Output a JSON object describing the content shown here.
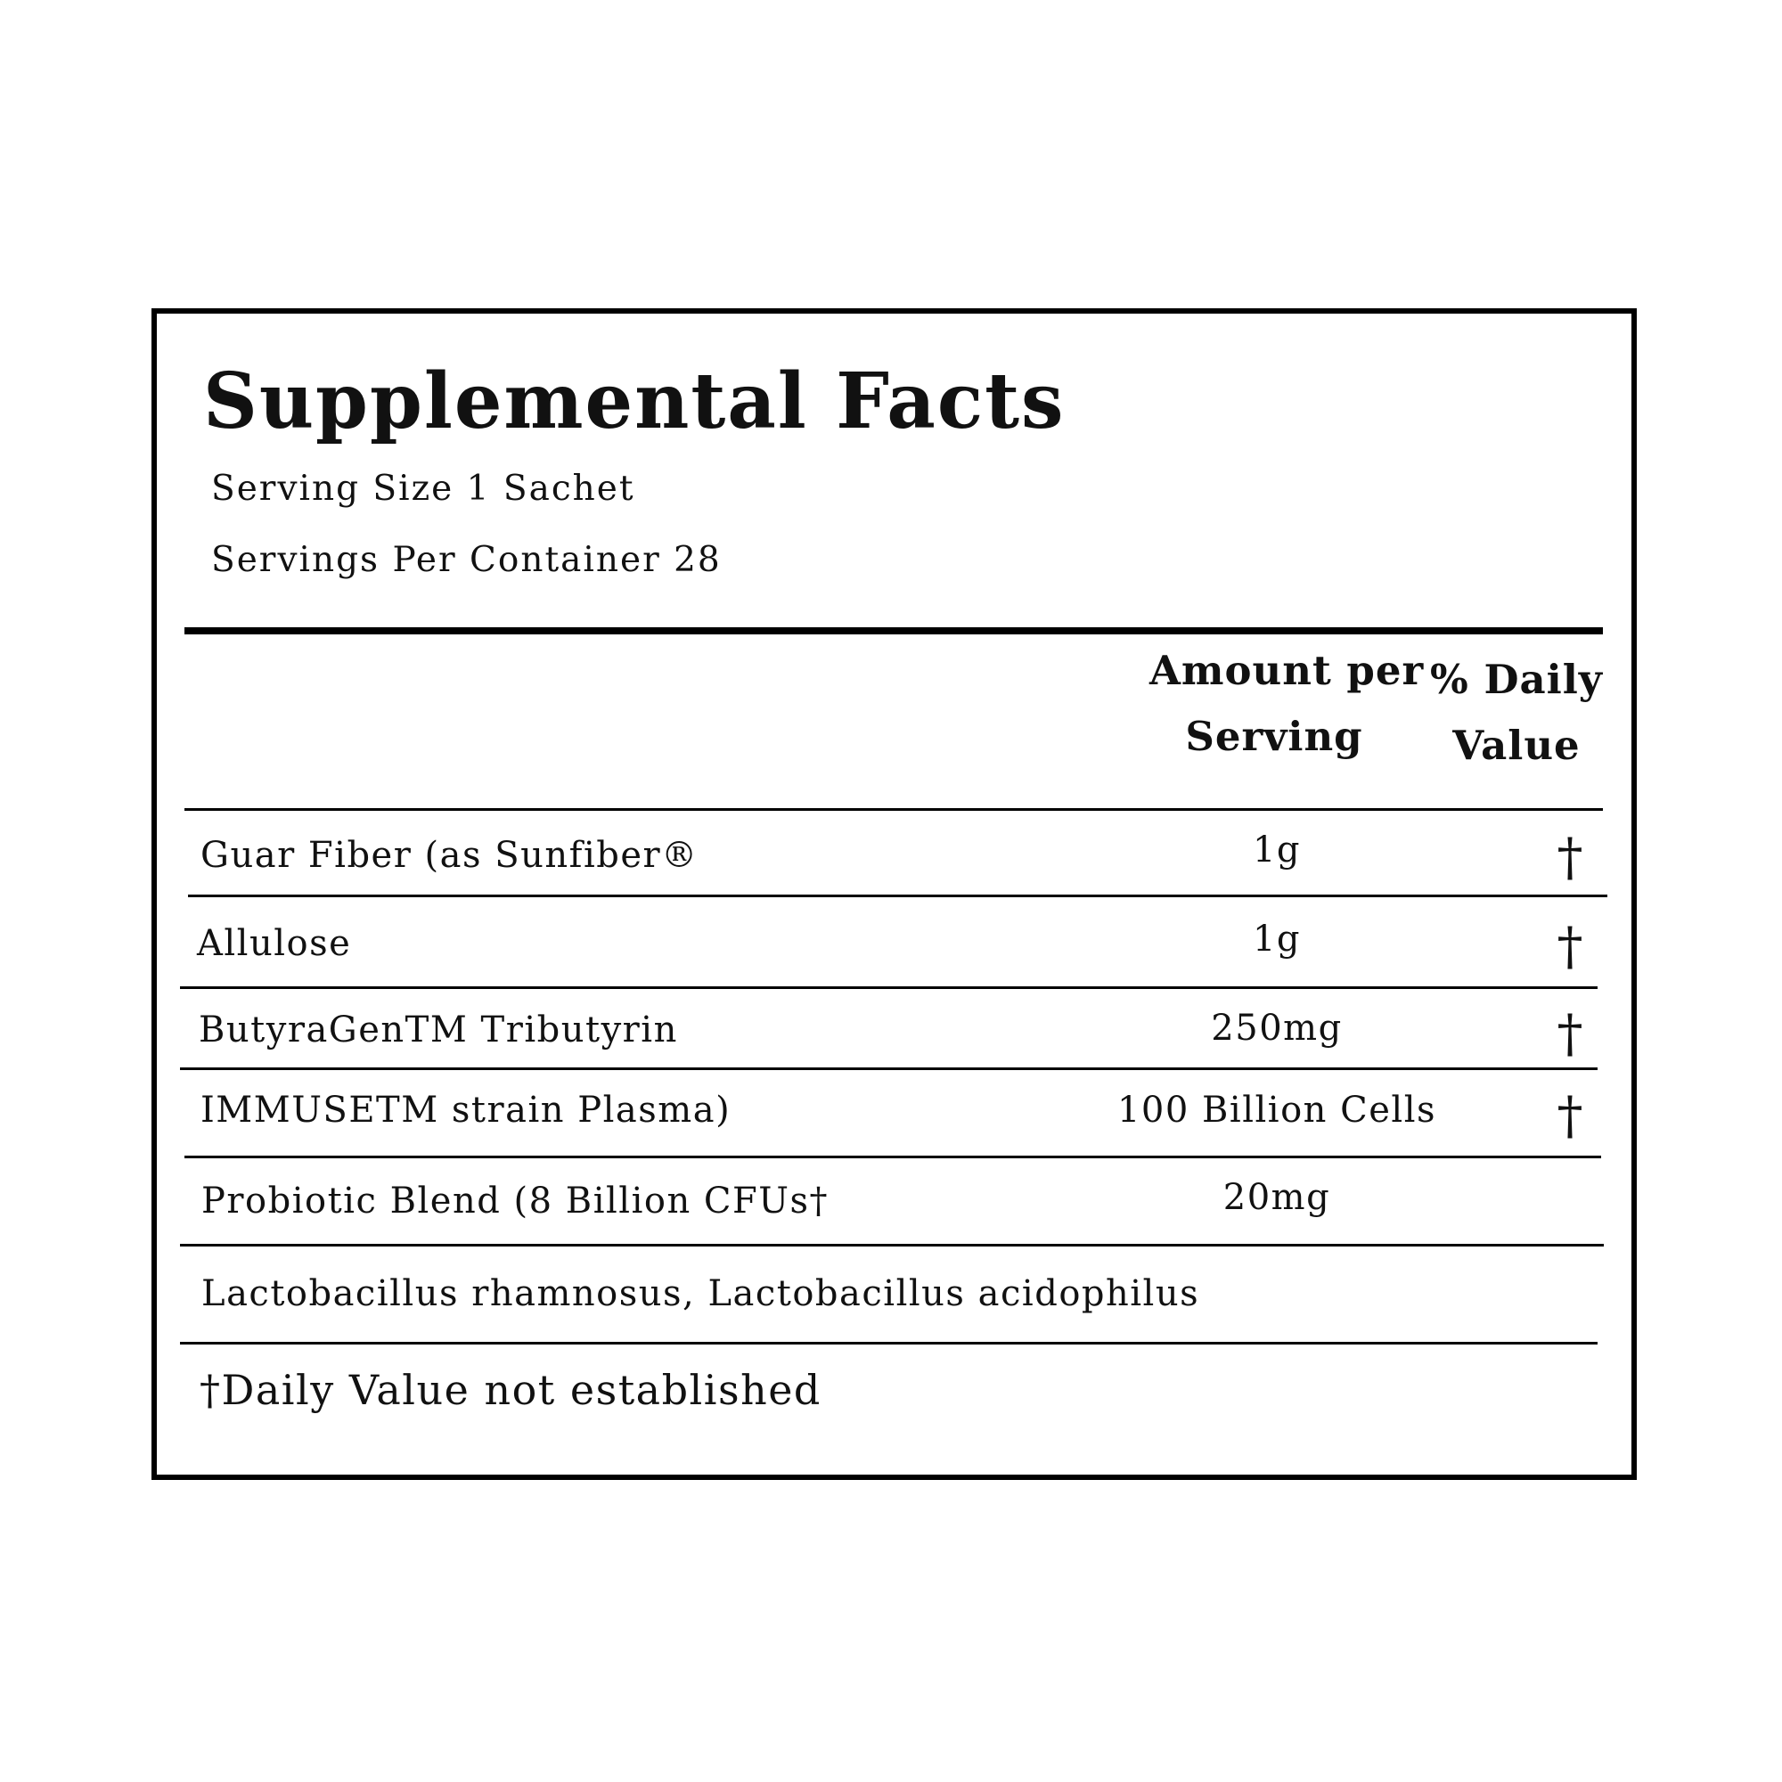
{
  "title": "Supplemental Facts",
  "serving_size": "Serving Size 1 Sachet",
  "servings_per_container": "Servings Per Container 28",
  "headers": {
    "amount_line1": "Amount per",
    "amount_line2": "Serving",
    "dv_line1": "% Daily",
    "dv_line2": "Value"
  },
  "rows": [
    {
      "name": "Guar Fiber (as Sunfiber®",
      "amount": "1g",
      "dv": "†"
    },
    {
      "name": "Allulose",
      "amount": "1g",
      "dv": "†"
    },
    {
      "name": "ButyraGenTM Tributyrin",
      "amount": "250mg",
      "dv": "†"
    },
    {
      "name": "IMMUSETM strain Plasma)",
      "amount": "100 Billion Cells",
      "dv": "†"
    },
    {
      "name": "Probiotic Blend (8 Billion CFUs†",
      "amount": "20mg"
    }
  ],
  "strains": "Lactobacillus rhamnosus, Lactobacillus acidophilus",
  "footnote": "†Daily Value not established"
}
